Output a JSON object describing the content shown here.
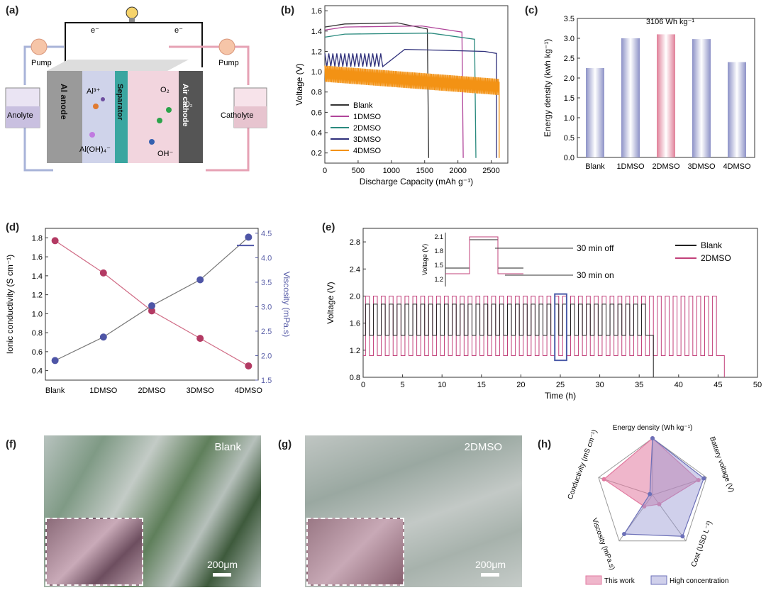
{
  "panel_labels": {
    "a": "(a)",
    "b": "(b)",
    "c": "(c)",
    "d": "(d)",
    "e": "(e)",
    "f": "(f)",
    "g": "(g)",
    "h": "(h)"
  },
  "schematic": {
    "electron_left": "e⁻",
    "electron_right": "e⁻",
    "pump_left": "Pump",
    "pump_right": "Pump",
    "anolyte": "Anolyte",
    "catholyte": "Catholyte",
    "anode": "Al anode",
    "separator": "Separator",
    "cathode": "Air cathode",
    "al3": "Al³⁺",
    "aloh4": "Al(OH)₄⁻",
    "o2_left": "O₂",
    "o2_right": "O₂",
    "oh": "OH⁻"
  },
  "chart_data": [
    {
      "id": "b",
      "type": "line",
      "xlabel": "Discharge Capacity (mAh g⁻¹)",
      "ylabel": "Voltage (V)",
      "xlim": [
        0,
        2750
      ],
      "ylim": [
        0.1,
        1.65
      ],
      "xticks": [
        "0",
        "500",
        "1000",
        "1500",
        "2000",
        "2500"
      ],
      "yticks": [
        "0.2",
        "0.4",
        "0.6",
        "0.8",
        "1.0",
        "1.2",
        "1.4",
        "1.6"
      ],
      "series": [
        {
          "name": "Blank",
          "color": "#333333",
          "end": 1560,
          "level": 1.47
        },
        {
          "name": "1DMSO",
          "color": "#b0449a",
          "end": 2080,
          "level": 1.44
        },
        {
          "name": "2DMSO",
          "color": "#2a8a7e",
          "end": 2270,
          "level": 1.37
        },
        {
          "name": "3DMSO",
          "color": "#2e2f7a",
          "end": 2580,
          "level": 1.2
        },
        {
          "name": "4DMSO",
          "color": "#f39214",
          "end": 2620,
          "level": 0.98
        }
      ]
    },
    {
      "id": "c",
      "type": "bar",
      "ylabel": "Energy density (kwh kg⁻¹)",
      "annotation": "3106 Wh kg⁻¹",
      "categories": [
        "Blank",
        "1DMSO",
        "2DMSO",
        "3DMSO",
        "4DMSO"
      ],
      "values": [
        2.25,
        3.0,
        3.1,
        2.98,
        2.4
      ],
      "ylim": [
        0,
        3.5
      ],
      "yticks": [
        "0.0",
        "0.5",
        "1.0",
        "1.5",
        "2.0",
        "2.5",
        "3.0",
        "3.5"
      ]
    },
    {
      "id": "d",
      "type": "line",
      "ylabel": "Ionic conductivity (S cm⁻¹)",
      "y2label": "Viscosity (mPa.s)",
      "categories": [
        "Blank",
        "1DMSO",
        "2DMSO",
        "3DMSO",
        "4DMSO"
      ],
      "conductivity": [
        1.77,
        1.43,
        1.03,
        0.74,
        0.45
      ],
      "viscosity": [
        1.9,
        2.38,
        3.02,
        3.55,
        4.42
      ],
      "ylim": [
        0.3,
        1.9
      ],
      "y2lim": [
        1.5,
        4.6
      ],
      "yticks": [
        "0.4",
        "0.6",
        "0.8",
        "1.0",
        "1.2",
        "1.4",
        "1.6",
        "1.8"
      ],
      "y2ticks": [
        "1.5",
        "2.0",
        "2.5",
        "3.0",
        "3.5",
        "4.0",
        "4.5"
      ]
    },
    {
      "id": "e",
      "type": "line",
      "xlabel": "Time (h)",
      "ylabel": "Voltage (V)",
      "xlim": [
        0,
        50
      ],
      "ylim": [
        0.8,
        3.0
      ],
      "xticks": [
        "0",
        "5",
        "10",
        "15",
        "20",
        "25",
        "30",
        "35",
        "40",
        "45",
        "50"
      ],
      "yticks": [
        "0.8",
        "1.2",
        "1.6",
        "2.0",
        "2.4",
        "2.8"
      ],
      "legend": [
        "Blank",
        "2DMSO"
      ],
      "inset_ylabel": "Voltage (V)",
      "inset_yticks": [
        "2.1",
        "1.8",
        "1.5",
        "1.2"
      ],
      "off_label": "30 min off",
      "on_label": "30 min on",
      "blank_end": 36.8,
      "dmso_end": 45.8
    },
    {
      "id": "h",
      "type": "radar",
      "axes": [
        "Energy density (Wh kg⁻¹)",
        "Battery voltage (V)",
        "Cost (USD L⁻¹)",
        "Viscosity (mPa.s)",
        "Conductivity (mS cm⁻¹)"
      ],
      "series": [
        {
          "name": "This work",
          "values": [
            1.0,
            0.85,
            0.2,
            0.25,
            0.9
          ]
        },
        {
          "name": "High concentration",
          "values": [
            1.0,
            0.95,
            0.9,
            0.85,
            0.05
          ]
        }
      ]
    }
  ],
  "micro": {
    "f_label": "Blank",
    "g_label": "2DMSO",
    "scale": "200μm"
  }
}
